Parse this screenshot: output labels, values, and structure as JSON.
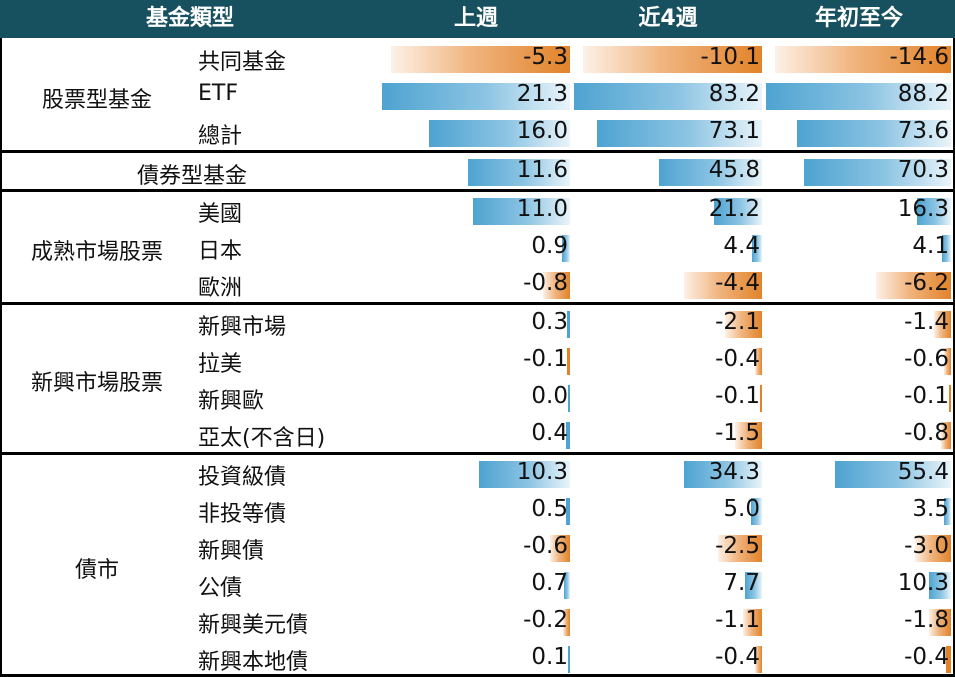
{
  "header": [
    "基金類型",
    "上週",
    "近4週",
    "年初至今"
  ],
  "groups": [
    {
      "label": "股票型基金",
      "rows": [
        {
          "name": "共同基金",
          "values": [
            "-5.3",
            "-10.1",
            "-14.6"
          ]
        },
        {
          "name": "ETF",
          "values": [
            "21.3",
            "83.2",
            "88.2"
          ]
        },
        {
          "name": "總計",
          "values": [
            "16.0",
            "73.1",
            "73.6"
          ]
        }
      ]
    },
    {
      "label": "債券型基金",
      "rows": [
        {
          "name": "",
          "values": [
            "11.6",
            "45.8",
            "70.3"
          ]
        }
      ]
    },
    {
      "label": "成熟市場股票",
      "rows": [
        {
          "name": "美國",
          "values": [
            "11.0",
            "21.2",
            "16.3"
          ]
        },
        {
          "name": "日本",
          "values": [
            "0.9",
            "4.4",
            "4.1"
          ]
        },
        {
          "name": "歐洲",
          "values": [
            "-0.8",
            "-4.4",
            "-6.2"
          ]
        }
      ]
    },
    {
      "label": "新興市場股票",
      "rows": [
        {
          "name": "新興市場",
          "values": [
            "0.3",
            "-2.1",
            "-1.4"
          ]
        },
        {
          "name": "拉美",
          "values": [
            "-0.1",
            "-0.4",
            "-0.6"
          ]
        },
        {
          "name": "新興歐",
          "values": [
            "0.0",
            "-0.1",
            "-0.1"
          ]
        },
        {
          "name": "亞太(不含日)",
          "values": [
            "0.4",
            "-1.5",
            "-0.8"
          ]
        }
      ]
    },
    {
      "label": "債市",
      "rows": [
        {
          "name": "投資級債",
          "values": [
            "10.3",
            "34.3",
            "55.4"
          ]
        },
        {
          "name": "非投等債",
          "values": [
            "0.5",
            "5.0",
            "3.5"
          ]
        },
        {
          "name": "新興債",
          "values": [
            "-0.6",
            "-2.5",
            "-3.0"
          ]
        },
        {
          "name": "公債",
          "values": [
            "0.7",
            "7.7",
            "10.3"
          ]
        },
        {
          "name": "新興美元債",
          "values": [
            "-0.2",
            "-1.1",
            "-1.8"
          ]
        },
        {
          "name": "新興本地債",
          "values": [
            "0.1",
            "-0.4",
            "-0.4"
          ]
        }
      ]
    }
  ]
}
